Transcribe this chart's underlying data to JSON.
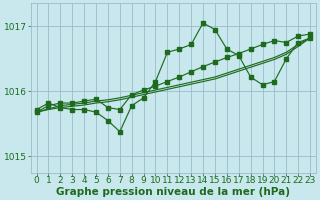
{
  "bg_color": "#c8e8ee",
  "grid_color": "#99bbcc",
  "line_color": "#1e6b1e",
  "marker_color": "#1e6b1e",
  "xlabel": "Graphe pression niveau de la mer (hPa)",
  "xlabel_color": "#1e6b1e",
  "xlabel_fontsize": 7.5,
  "tick_color": "#1e6b1e",
  "tick_fontsize": 6.5,
  "yticks": [
    1015,
    1016,
    1017
  ],
  "xlim": [
    -0.5,
    23.5
  ],
  "ylim": [
    1014.75,
    1017.35
  ],
  "hours": [
    0,
    1,
    2,
    3,
    4,
    5,
    6,
    7,
    8,
    9,
    10,
    11,
    12,
    13,
    14,
    15,
    16,
    17,
    18,
    19,
    20,
    21,
    22,
    23
  ],
  "line_jagged": [
    1015.72,
    1015.82,
    1015.75,
    1015.72,
    1015.72,
    1015.68,
    1015.55,
    1015.38,
    1015.78,
    1015.9,
    1016.15,
    1016.6,
    1016.65,
    1016.72,
    1017.05,
    1016.95,
    1016.65,
    1016.55,
    1016.22,
    1016.1,
    1016.15,
    1016.5,
    1016.75,
    1016.82
  ],
  "line_steep": [
    1015.68,
    1015.78,
    1015.82,
    1015.82,
    1015.85,
    1015.88,
    1015.75,
    1015.72,
    1015.95,
    1016.02,
    1016.08,
    1016.15,
    1016.22,
    1016.3,
    1016.38,
    1016.45,
    1016.52,
    1016.58,
    1016.65,
    1016.72,
    1016.78,
    1016.75,
    1016.85,
    1016.88
  ],
  "line_flat1": [
    1015.68,
    1015.73,
    1015.78,
    1015.8,
    1015.82,
    1015.85,
    1015.87,
    1015.9,
    1015.94,
    1015.98,
    1016.02,
    1016.06,
    1016.1,
    1016.14,
    1016.18,
    1016.22,
    1016.28,
    1016.34,
    1016.4,
    1016.46,
    1016.52,
    1016.6,
    1016.72,
    1016.82
  ],
  "line_flat2": [
    1015.68,
    1015.72,
    1015.75,
    1015.77,
    1015.79,
    1015.82,
    1015.84,
    1015.87,
    1015.91,
    1015.95,
    1015.99,
    1016.03,
    1016.07,
    1016.11,
    1016.15,
    1016.19,
    1016.25,
    1016.31,
    1016.37,
    1016.43,
    1016.49,
    1016.57,
    1016.69,
    1016.82
  ]
}
